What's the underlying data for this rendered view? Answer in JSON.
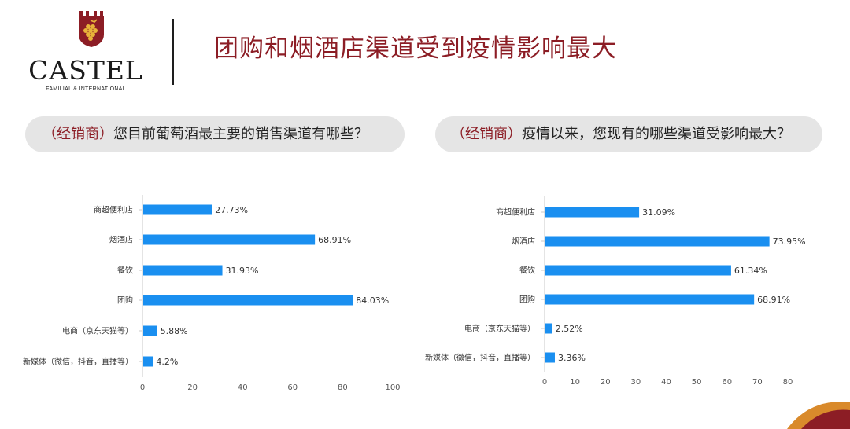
{
  "logo": {
    "name": "CASTEL",
    "tagline": "FAMILIAL & INTERNATIONAL"
  },
  "page_title": "团购和烟酒店渠道受到疫情影响最大",
  "colors": {
    "accent": "#8c1d25",
    "bar": "#1a8ff0",
    "pill": "#e5e5e5"
  },
  "questions": [
    {
      "tag": "（经销商）",
      "text": "您目前葡萄酒最主要的销售渠道有哪些？"
    },
    {
      "tag": "（经销商）",
      "text": "疫情以来，您现有的哪些渠道受影响最大？"
    }
  ],
  "chart_data": [
    {
      "type": "bar",
      "orientation": "horizontal",
      "categories": [
        "商超便利店",
        "烟酒店",
        "餐饮",
        "团购",
        "电商（京东天猫等）",
        "新媒体（微信，抖音，直播等）"
      ],
      "values": [
        27.73,
        68.91,
        31.93,
        84.03,
        5.88,
        4.2
      ],
      "value_labels": [
        "27.73%",
        "68.91%",
        "31.93%",
        "84.03%",
        "5.88%",
        "4.2%"
      ],
      "xlim": [
        0,
        100
      ],
      "xticks": [
        0,
        20,
        40,
        60,
        80,
        100
      ],
      "grid": false
    },
    {
      "type": "bar",
      "orientation": "horizontal",
      "categories": [
        "商超便利店",
        "烟酒店",
        "餐饮",
        "团购",
        "电商（京东天猫等）",
        "新媒体（微信，抖音，直播等）"
      ],
      "values": [
        31.09,
        73.95,
        61.34,
        68.91,
        2.52,
        3.36
      ],
      "value_labels": [
        "31.09%",
        "73.95%",
        "61.34%",
        "68.91%",
        "2.52%",
        "3.36%"
      ],
      "xlim": [
        0,
        80
      ],
      "xticks": [
        0,
        10,
        20,
        30,
        40,
        50,
        60,
        70,
        80
      ],
      "grid": false
    }
  ]
}
